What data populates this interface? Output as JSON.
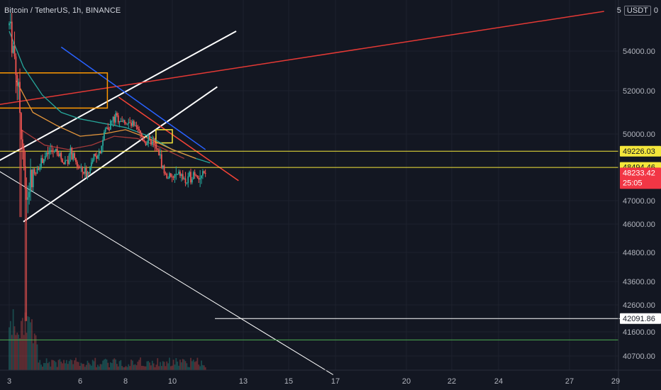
{
  "header": {
    "symbol_title": "Bitcoin / TetherUS, 1h, BINANCE",
    "currency_prefix": "5",
    "currency": "USDT",
    "currency_suffix": "0"
  },
  "chart_data": {
    "type": "candlestick",
    "symbol": "Bitcoin / TetherUS",
    "interval": "1h",
    "exchange": "BINANCE",
    "y_ticks": [
      54000,
      52000,
      50000,
      47000,
      46000,
      44800,
      43600,
      42600,
      41600,
      40700
    ],
    "x_ticks": [
      "3",
      "6",
      "8",
      "10",
      "13",
      "15",
      "17",
      "20",
      "22",
      "24",
      "27",
      "29"
    ],
    "price_labels": [
      {
        "value": "49226.03",
        "kind": "horizontal-line",
        "color": "#f5e73b"
      },
      {
        "value": "48494.46",
        "kind": "horizontal-line",
        "color": "#f5e73b"
      },
      {
        "value": "48233.42",
        "kind": "last-price",
        "countdown": "25:05",
        "color": "#f23645"
      },
      {
        "value": "42091.86",
        "kind": "horizontal-line",
        "color": "#ffffff"
      }
    ],
    "price_series": [
      [
        3.0,
        55300
      ],
      [
        3.2,
        54100
      ],
      [
        3.4,
        51800
      ],
      [
        3.6,
        49200
      ],
      [
        3.7,
        46500
      ],
      [
        3.8,
        47400
      ],
      [
        4.0,
        48200
      ],
      [
        4.3,
        48700
      ],
      [
        4.6,
        49100
      ],
      [
        5.0,
        49300
      ],
      [
        5.3,
        48700
      ],
      [
        5.6,
        49100
      ],
      [
        6.0,
        48400
      ],
      [
        6.3,
        48200
      ],
      [
        6.6,
        48900
      ],
      [
        6.9,
        49300
      ],
      [
        7.1,
        50200
      ],
      [
        7.4,
        50600
      ],
      [
        7.6,
        50800
      ],
      [
        7.9,
        50600
      ],
      [
        8.2,
        50400
      ],
      [
        8.5,
        50200
      ],
      [
        8.8,
        49700
      ],
      [
        9.1,
        49600
      ],
      [
        9.4,
        49200
      ],
      [
        9.7,
        48100
      ],
      [
        10.0,
        48000
      ],
      [
        10.3,
        48200
      ],
      [
        10.6,
        47800
      ],
      [
        10.9,
        48300
      ],
      [
        11.2,
        48000
      ],
      [
        11.4,
        48233
      ]
    ],
    "moving_averages": [
      {
        "color": "#26a69a",
        "points": [
          [
            3.0,
            55000
          ],
          [
            3.6,
            53200
          ],
          [
            4.4,
            51800
          ],
          [
            5.2,
            51000
          ],
          [
            6.0,
            50700
          ],
          [
            7.0,
            50500
          ],
          [
            8.0,
            50300
          ],
          [
            9.0,
            49900
          ],
          [
            10.0,
            49300
          ],
          [
            11.0,
            48900
          ],
          [
            11.6,
            48700
          ]
        ]
      },
      {
        "color": "#e5963b",
        "points": [
          [
            3.3,
            52500
          ],
          [
            4.0,
            51000
          ],
          [
            5.0,
            50400
          ],
          [
            6.0,
            49900
          ],
          [
            7.0,
            50000
          ],
          [
            8.0,
            50200
          ],
          [
            9.0,
            49800
          ],
          [
            10.0,
            49300
          ],
          [
            11.0,
            48900
          ]
        ]
      },
      {
        "color": "#a53a3a",
        "points": [
          [
            3.5,
            50200
          ],
          [
            4.5,
            49500
          ],
          [
            5.5,
            49300
          ],
          [
            6.5,
            49500
          ],
          [
            7.5,
            49900
          ],
          [
            8.5,
            49800
          ],
          [
            9.5,
            49400
          ],
          [
            10.5,
            48900
          ]
        ]
      }
    ],
    "drawings": [
      {
        "type": "channel-line",
        "color": "#ffffff",
        "from": [
          3.6,
          46100
        ],
        "to": [
          11.9,
          52200
        ]
      },
      {
        "type": "channel-line",
        "color": "#ffffff",
        "from": [
          2.4,
          48700
        ],
        "to": [
          12.7,
          55000
        ]
      },
      {
        "type": "trend-line",
        "color": "#e53935",
        "from": [
          2.2,
          51300
        ],
        "to": [
          28.5,
          56000
        ]
      },
      {
        "type": "trend-line",
        "color": "#2962ff",
        "from": [
          5.2,
          54200
        ],
        "to": [
          11.4,
          49300
        ]
      },
      {
        "type": "trend-line",
        "color": "#f44336",
        "from": [
          7.7,
          51700
        ],
        "to": [
          12.8,
          47900
        ]
      },
      {
        "type": "trend-line",
        "color": "#ffffff",
        "from": [
          2.0,
          48700
        ],
        "to": [
          16.9,
          40000
        ]
      },
      {
        "type": "horizontal-ray",
        "color": "#ffffff",
        "from": [
          11.8,
          42091.86
        ],
        "to": [
          29.4,
          42091.86
        ]
      },
      {
        "type": "horizontal-line",
        "color": "#f5e73b",
        "value": 49226.03
      },
      {
        "type": "horizontal-line",
        "color": "#f5e73b",
        "value": 48494.46
      },
      {
        "type": "horizontal-line",
        "color": "#4caf50",
        "value": 41300
      },
      {
        "type": "rectangle",
        "color": "#ff9800",
        "from": [
          2.5,
          52900
        ],
        "to": [
          7.2,
          51200
        ]
      },
      {
        "type": "rectangle",
        "color": "#f5e73b",
        "from": [
          9.3,
          50200
        ],
        "to": [
          10.0,
          49600
        ]
      }
    ]
  }
}
